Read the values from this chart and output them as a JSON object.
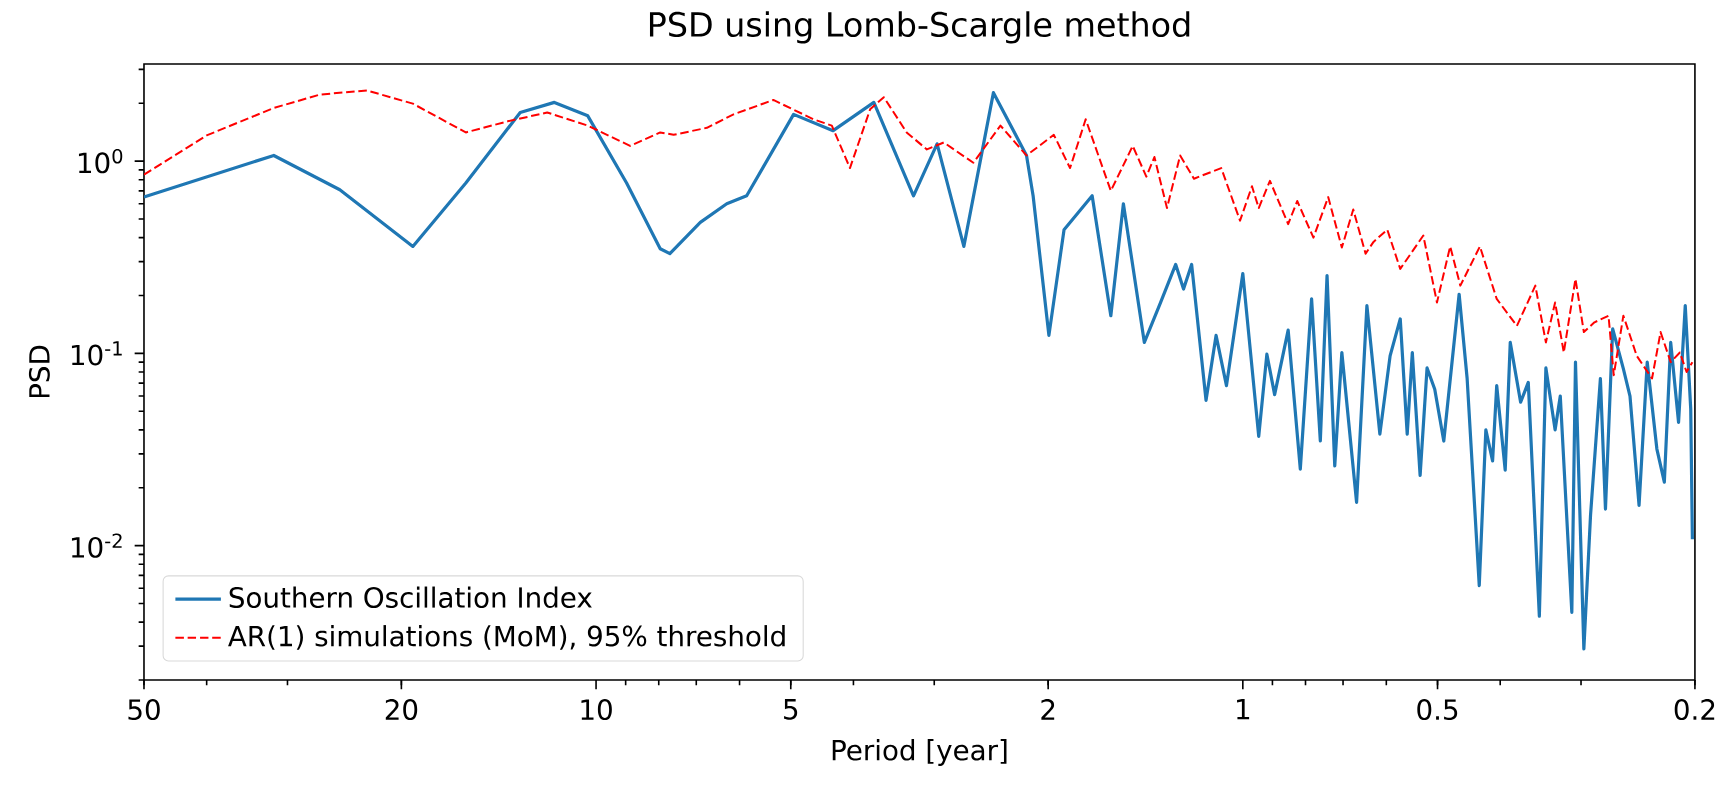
{
  "chart_data": {
    "type": "line",
    "title": "PSD using Lomb-Scargle method",
    "xlabel": "Period [year]",
    "ylabel": "PSD",
    "log": "xy",
    "xlim": [
      50,
      0.2
    ],
    "ylim": [
      0.002,
      3.2
    ],
    "xticks": [
      50,
      20,
      10,
      5,
      2,
      1,
      0.5,
      0.2
    ],
    "yticks": [
      {
        "value": 1,
        "label": "10$^{0}$"
      },
      {
        "value": 0.1,
        "label": "10$^{-1}$"
      },
      {
        "value": 0.01,
        "label": "10$^{-2}$"
      }
    ],
    "grid": false,
    "legend": "bottom left",
    "series": [
      {
        "name": "Southern Oscillation Index",
        "color": "#1f77b4",
        "line_style": "solid",
        "x": [
          50,
          31.5,
          24.9,
          19.2,
          15.9,
          13.1,
          11.6,
          10.3,
          8.97,
          7.96,
          7.69,
          6.9,
          6.28,
          5.85,
          4.95,
          4.3,
          3.72,
          3.23,
          2.97,
          2.7,
          2.43,
          2.16,
          2.11,
          1.995,
          1.89,
          1.71,
          1.6,
          1.53,
          1.42,
          1.34,
          1.27,
          1.235,
          1.2,
          1.14,
          1.1,
          1.06,
          1.0,
          0.945,
          0.918,
          0.893,
          0.851,
          0.815,
          0.783,
          0.759,
          0.741,
          0.721,
          0.703,
          0.667,
          0.643,
          0.614,
          0.592,
          0.571,
          0.557,
          0.547,
          0.532,
          0.519,
          0.505,
          0.489,
          0.463,
          0.45,
          0.431,
          0.421,
          0.411,
          0.405,
          0.393,
          0.386,
          0.372,
          0.362,
          0.348,
          0.34,
          0.329,
          0.323,
          0.31,
          0.306,
          0.297,
          0.29,
          0.28,
          0.275,
          0.268,
          0.258,
          0.252,
          0.244,
          0.237,
          0.229,
          0.223,
          0.218,
          0.212,
          0.207,
          0.203,
          0.2018
        ],
        "values": [
          0.65,
          1.07,
          0.71,
          0.36,
          0.77,
          1.79,
          2.02,
          1.72,
          0.77,
          0.35,
          0.33,
          0.48,
          0.6,
          0.66,
          1.75,
          1.44,
          2.02,
          0.66,
          1.23,
          0.36,
          2.27,
          1.07,
          0.66,
          0.124,
          0.44,
          0.66,
          0.157,
          0.6,
          0.114,
          0.184,
          0.29,
          0.216,
          0.29,
          0.057,
          0.124,
          0.068,
          0.26,
          0.037,
          0.099,
          0.061,
          0.132,
          0.025,
          0.192,
          0.035,
          0.254,
          0.026,
          0.101,
          0.0168,
          0.177,
          0.038,
          0.097,
          0.151,
          0.038,
          0.101,
          0.0232,
          0.084,
          0.065,
          0.035,
          0.203,
          0.074,
          0.0062,
          0.04,
          0.0276,
          0.068,
          0.0247,
          0.114,
          0.0557,
          0.0706,
          0.0043,
          0.084,
          0.04,
          0.06,
          0.0045,
          0.09,
          0.0029,
          0.0144,
          0.074,
          0.0155,
          0.134,
          0.083,
          0.06,
          0.0162,
          0.09,
          0.0318,
          0.0214,
          0.114,
          0.0438,
          0.177,
          0.0514,
          0.0108
        ]
      },
      {
        "name": "AR(1) simulations (MoM), 95% threshold",
        "color": "#ff0000",
        "line_style": "dashed",
        "x": [
          50,
          40.0,
          31.5,
          26.7,
          22.6,
          19.2,
          15.9,
          13.7,
          11.9,
          10.3,
          8.86,
          7.96,
          7.59,
          6.74,
          6.13,
          5.32,
          4.61,
          4.32,
          4.05,
          3.77,
          3.59,
          3.31,
          3.08,
          2.9,
          2.61,
          2.37,
          2.16,
          1.96,
          1.85,
          1.75,
          1.6,
          1.48,
          1.41,
          1.37,
          1.31,
          1.25,
          1.19,
          1.08,
          1.01,
          0.968,
          0.945,
          0.908,
          0.851,
          0.824,
          0.778,
          0.738,
          0.703,
          0.675,
          0.646,
          0.628,
          0.598,
          0.571,
          0.526,
          0.501,
          0.478,
          0.461,
          0.43,
          0.405,
          0.377,
          0.353,
          0.34,
          0.329,
          0.319,
          0.306,
          0.297,
          0.286,
          0.272,
          0.267,
          0.258,
          0.246,
          0.233,
          0.226,
          0.218,
          0.211,
          0.206,
          0.2018
        ],
        "values": [
          0.85,
          1.36,
          1.89,
          2.22,
          2.33,
          1.99,
          1.41,
          1.61,
          1.79,
          1.53,
          1.2,
          1.41,
          1.37,
          1.49,
          1.75,
          2.08,
          1.65,
          1.53,
          0.92,
          1.86,
          2.15,
          1.41,
          1.15,
          1.25,
          0.98,
          1.53,
          1.07,
          1.37,
          0.92,
          1.65,
          0.7,
          1.2,
          0.83,
          1.05,
          0.57,
          1.07,
          0.81,
          0.92,
          0.49,
          0.74,
          0.57,
          0.79,
          0.47,
          0.62,
          0.4,
          0.65,
          0.355,
          0.56,
          0.33,
          0.38,
          0.44,
          0.275,
          0.41,
          0.184,
          0.36,
          0.225,
          0.36,
          0.192,
          0.139,
          0.225,
          0.114,
          0.184,
          0.101,
          0.244,
          0.129,
          0.145,
          0.157,
          0.077,
          0.157,
          0.097,
          0.074,
          0.129,
          0.09,
          0.101,
          0.08,
          0.09
        ]
      }
    ]
  }
}
